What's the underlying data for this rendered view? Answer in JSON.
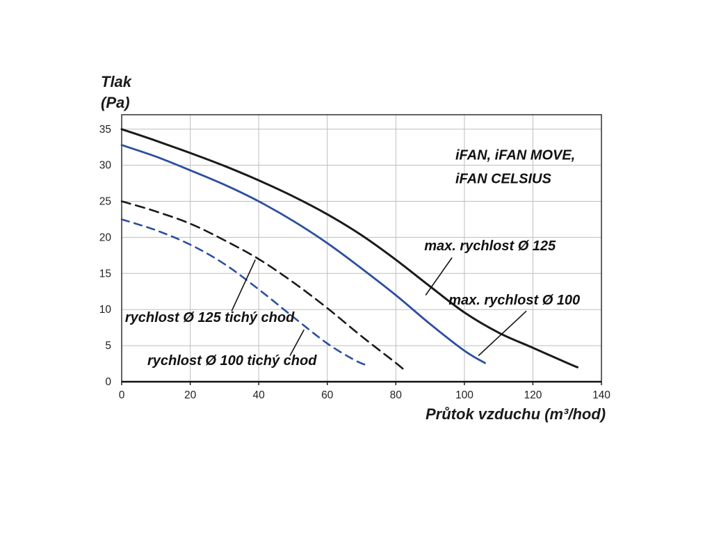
{
  "chart_data": {
    "type": "line",
    "ylabel": "Tlak (Pa)",
    "ylabel_lines": [
      "Tlak",
      "(Pa)"
    ],
    "xlabel": "Průtok vzduchu (m³/hod)",
    "xlim": [
      0,
      140
    ],
    "ylim": [
      0,
      37
    ],
    "x_ticks": [
      0,
      20,
      40,
      60,
      80,
      100,
      120,
      140
    ],
    "y_ticks": [
      0,
      5,
      10,
      15,
      20,
      25,
      30,
      35
    ],
    "grid": true,
    "legend_position": "annotations-on-plot",
    "colors": {
      "black_curve": "#1a1a1a",
      "blue_curve": "#2b4f9f",
      "grid": "#bdbdbd",
      "border": "#3c3c3c",
      "axis": "#111111",
      "tick_text": "#222222",
      "label_text": "#111111"
    },
    "series": [
      {
        "name": "max. rychlost Ø 125",
        "color": "#1a1a1a",
        "dash": null,
        "width": 3,
        "points": [
          [
            0,
            35
          ],
          [
            10,
            33.4
          ],
          [
            20,
            31.7
          ],
          [
            30,
            29.9
          ],
          [
            40,
            27.9
          ],
          [
            50,
            25.7
          ],
          [
            60,
            23.2
          ],
          [
            70,
            20.3
          ],
          [
            80,
            16.9
          ],
          [
            90,
            13.2
          ],
          [
            100,
            9.6
          ],
          [
            110,
            6.8
          ],
          [
            120,
            4.7
          ],
          [
            130,
            2.6
          ],
          [
            133,
            2
          ]
        ]
      },
      {
        "name": "max. rychlost Ø 100",
        "color": "#2b4f9f",
        "dash": null,
        "width": 2.8,
        "points": [
          [
            0,
            32.8
          ],
          [
            10,
            31.2
          ],
          [
            20,
            29.3
          ],
          [
            30,
            27.3
          ],
          [
            40,
            25
          ],
          [
            50,
            22.3
          ],
          [
            60,
            19.2
          ],
          [
            70,
            15.7
          ],
          [
            80,
            12
          ],
          [
            90,
            8
          ],
          [
            100,
            4.3
          ],
          [
            106,
            2.6
          ]
        ]
      },
      {
        "name": "rychlost Ø 125 tichý chod",
        "color": "#1a1a1a",
        "dash": "13,8",
        "width": 2.6,
        "points": [
          [
            0,
            25
          ],
          [
            10,
            23.6
          ],
          [
            20,
            21.9
          ],
          [
            30,
            19.6
          ],
          [
            40,
            17
          ],
          [
            50,
            13.8
          ],
          [
            60,
            10.2
          ],
          [
            70,
            6.3
          ],
          [
            80,
            2.6
          ],
          [
            83,
            1.4
          ]
        ]
      },
      {
        "name": "rychlost Ø 100 tichý chod",
        "color": "#2b4f9f",
        "dash": "11,8",
        "width": 2.6,
        "points": [
          [
            0,
            22.5
          ],
          [
            10,
            21
          ],
          [
            20,
            19
          ],
          [
            30,
            16.3
          ],
          [
            40,
            12.8
          ],
          [
            50,
            9
          ],
          [
            60,
            5.3
          ],
          [
            68,
            3
          ],
          [
            72,
            2.2
          ]
        ]
      }
    ],
    "annotations": [
      {
        "text": "iFAN, iFAN MOVE,",
        "x": 97.4,
        "y": 31.3,
        "kind": "brand",
        "leader": null
      },
      {
        "text": "iFAN CELSIUS",
        "x": 97.4,
        "y": 28.0,
        "kind": "brand",
        "leader": null
      },
      {
        "text": "max. rychlost Ø 125",
        "x": 88.3,
        "y": 18.7,
        "kind": "label",
        "leader": [
          [
            88.7,
            12.0
          ],
          [
            96.4,
            17.2
          ]
        ]
      },
      {
        "text": "max. rychlost Ø 100",
        "x": 95.4,
        "y": 11.2,
        "kind": "label",
        "leader": [
          [
            104.1,
            3.6
          ],
          [
            118.1,
            9.8
          ]
        ]
      },
      {
        "text": "rychlost Ø 125 tichý chod",
        "x": 1.0,
        "y": 8.8,
        "kind": "label",
        "leader": [
          [
            32.1,
            9.8
          ],
          [
            39.0,
            16.9
          ]
        ]
      },
      {
        "text": "rychlost Ø 100 tichý chod",
        "x": 7.5,
        "y": 2.8,
        "kind": "label",
        "leader": [
          [
            49.1,
            3.6
          ],
          [
            53.2,
            7.2
          ]
        ]
      }
    ]
  }
}
